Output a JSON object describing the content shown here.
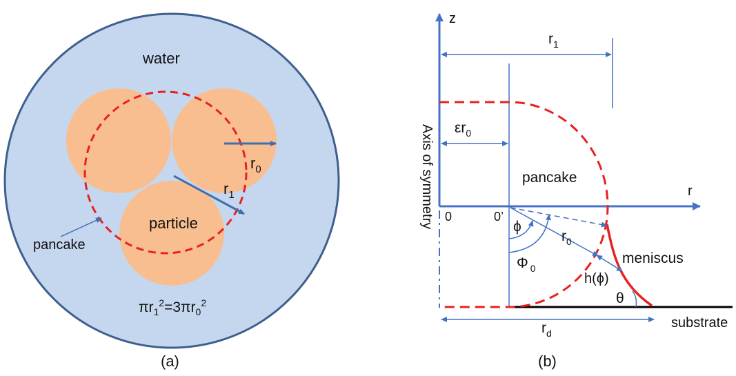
{
  "panel_a": {
    "caption": "(a)",
    "water_label": "water",
    "particle_label": "particle",
    "pancake_label": "pancake",
    "r0_base": "r",
    "r0_sub": "0",
    "r1_base": "r",
    "r1_sub": "1",
    "formula": {
      "p1": "πr",
      "p2": "1",
      "p3": "2",
      "p4": "=3πr",
      "p5": "0",
      "p6": "2"
    },
    "colors": {
      "water": "#c5d7ee",
      "outline": "#3e5f8e",
      "particle": "#f9be8f",
      "pancake": "#e82020",
      "arrow": "#3f6fae"
    }
  },
  "panel_b": {
    "caption": "(b)",
    "z_label": "z",
    "r_label": "r",
    "axis_of_symmetry": "Axis of symmetry",
    "r1_base": "r",
    "r1_sub": "1",
    "er0_base": "εr",
    "er0_sub": "0",
    "pancake_label": "pancake",
    "origin_label": "0",
    "origin_prime_label": "0’",
    "phi_label": "ϕ",
    "Phi0_base": "Φ",
    "Phi0_sub": "0",
    "r0_base": "r",
    "r0_sub": "0",
    "meniscus_label": "meniscus",
    "h_phi_label": "h(ϕ)",
    "theta_label": "θ",
    "rd_base": "r",
    "rd_sub": "d",
    "substrate_label": "substrate",
    "colors": {
      "axis": "#4472c4",
      "pancake": "#e82020",
      "substrate": "#000000"
    }
  }
}
